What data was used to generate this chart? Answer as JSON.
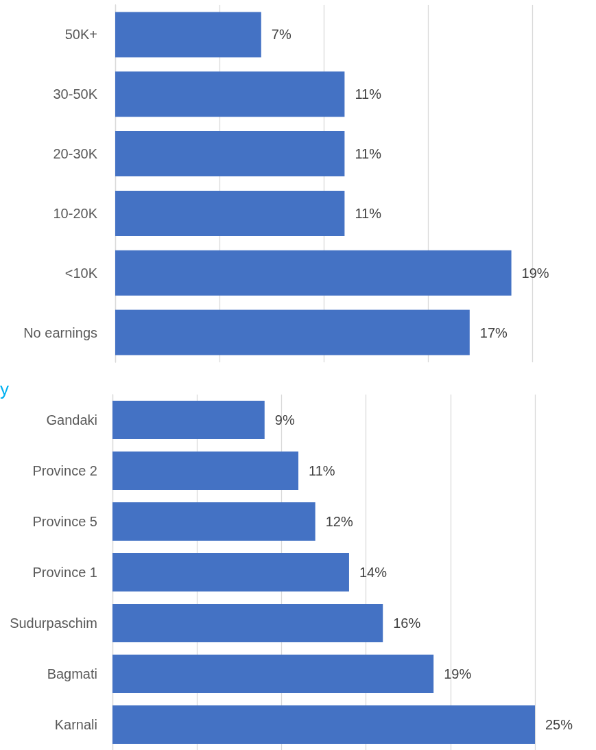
{
  "chart_data": [
    {
      "type": "bar",
      "orientation": "horizontal",
      "categories": [
        "50K+",
        "30-50K",
        "20-30K",
        "10-20K",
        "<10K",
        "No earnings"
      ],
      "values": [
        7,
        11,
        11,
        11,
        19,
        17
      ],
      "value_labels": [
        "7%",
        "11%",
        "11%",
        "11%",
        "19%",
        "17%"
      ],
      "color": "#4472c4",
      "xlim": [
        0,
        20
      ],
      "xticks": [
        {
          "value": 0,
          "label": null
        },
        {
          "value": 5,
          "label": null
        },
        {
          "value": 10,
          "label": null
        },
        {
          "value": 15,
          "label": null
        },
        {
          "value": 20,
          "label": null
        }
      ],
      "grid": "x",
      "tick_labels": "y"
    },
    {
      "type": "bar",
      "orientation": "horizontal",
      "title": "y",
      "categories": [
        "Gandaki",
        "Province 2",
        "Province 5",
        "Province 1",
        "Sudurpaschim",
        "Bagmati",
        "Karnali"
      ],
      "values": [
        9,
        11,
        12,
        14,
        16,
        19,
        25
      ],
      "value_labels": [
        "9%",
        "11%",
        "12%",
        "14%",
        "16%",
        "19%",
        "25%"
      ],
      "color": "#4472c4",
      "xlim": [
        0,
        25
      ],
      "xticks": [
        {
          "value": 0,
          "label": null
        },
        {
          "value": 5,
          "label": null
        },
        {
          "value": 10,
          "label": null
        },
        {
          "value": 15,
          "label": null
        },
        {
          "value": 20,
          "label": null
        },
        {
          "value": 25,
          "label": null
        }
      ],
      "grid": "x",
      "tick_labels": "y"
    }
  ]
}
